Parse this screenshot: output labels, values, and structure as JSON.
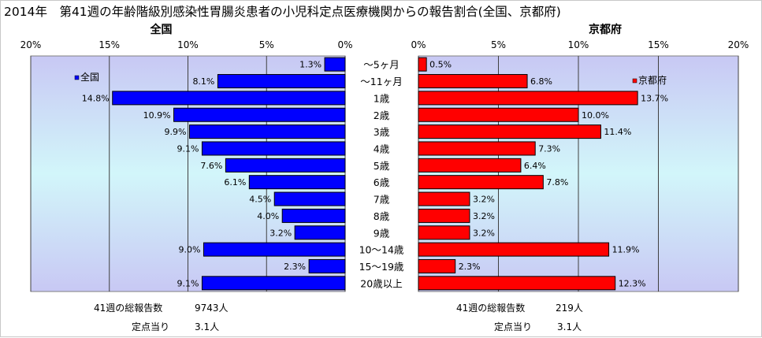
{
  "title": "2014年　第41週の年齢階級別感染性胃腸炎患者の小児科定点医療機関からの報告割合(全国、京都府)",
  "chart_data": {
    "type": "bar",
    "orientation": "horizontal",
    "categories": [
      "～5ヶ月",
      "～11ヶ月",
      "1歳",
      "2歳",
      "3歳",
      "4歳",
      "5歳",
      "6歳",
      "7歳",
      "8歳",
      "9歳",
      "10～14歳",
      "15～19歳",
      "20歳以上"
    ],
    "axis_ticks": [
      "0%",
      "5%",
      "10%",
      "15%",
      "20%"
    ],
    "xlim": [
      0,
      20
    ],
    "grid": true,
    "series": [
      {
        "name": "全国",
        "panel_title": "全国",
        "legend": "全国",
        "legend_placement": "top-left",
        "color": "#0000ff",
        "values": [
          1.3,
          8.1,
          14.8,
          10.9,
          9.9,
          9.1,
          7.6,
          6.1,
          4.5,
          4.0,
          3.2,
          9.0,
          2.3,
          9.1
        ],
        "labels": [
          "1.3%",
          "8.1%",
          "14.8%",
          "10.9%",
          "9.9%",
          "9.1%",
          "7.6%",
          "6.1%",
          "4.5%",
          "4.0%",
          "3.2%",
          "9.0%",
          "2.3%",
          "9.1%"
        ],
        "footer": {
          "total_label": "41週の総報告数",
          "total_value": "9743人",
          "per_label": "定点当り",
          "per_value": "3.1人"
        }
      },
      {
        "name": "京都府",
        "panel_title": "京都府",
        "legend": "京都府",
        "legend_placement": "top-right",
        "color": "#ff0000",
        "values": [
          0.5,
          6.8,
          13.7,
          10.0,
          11.4,
          7.3,
          6.4,
          7.8,
          3.2,
          3.2,
          3.2,
          11.9,
          2.3,
          12.3
        ],
        "labels": [
          "0.5%",
          "6.8%",
          "13.7%",
          "10.0%",
          "11.4%",
          "7.3%",
          "6.4%",
          "7.8%",
          "3.2%",
          "3.2%",
          "3.2%",
          "11.9%",
          "2.3%",
          "12.3%"
        ],
        "footer": {
          "total_label": "41週の総報告数",
          "total_value": "219人",
          "per_label": "定点当り",
          "per_value": "3.1人"
        }
      }
    ]
  }
}
